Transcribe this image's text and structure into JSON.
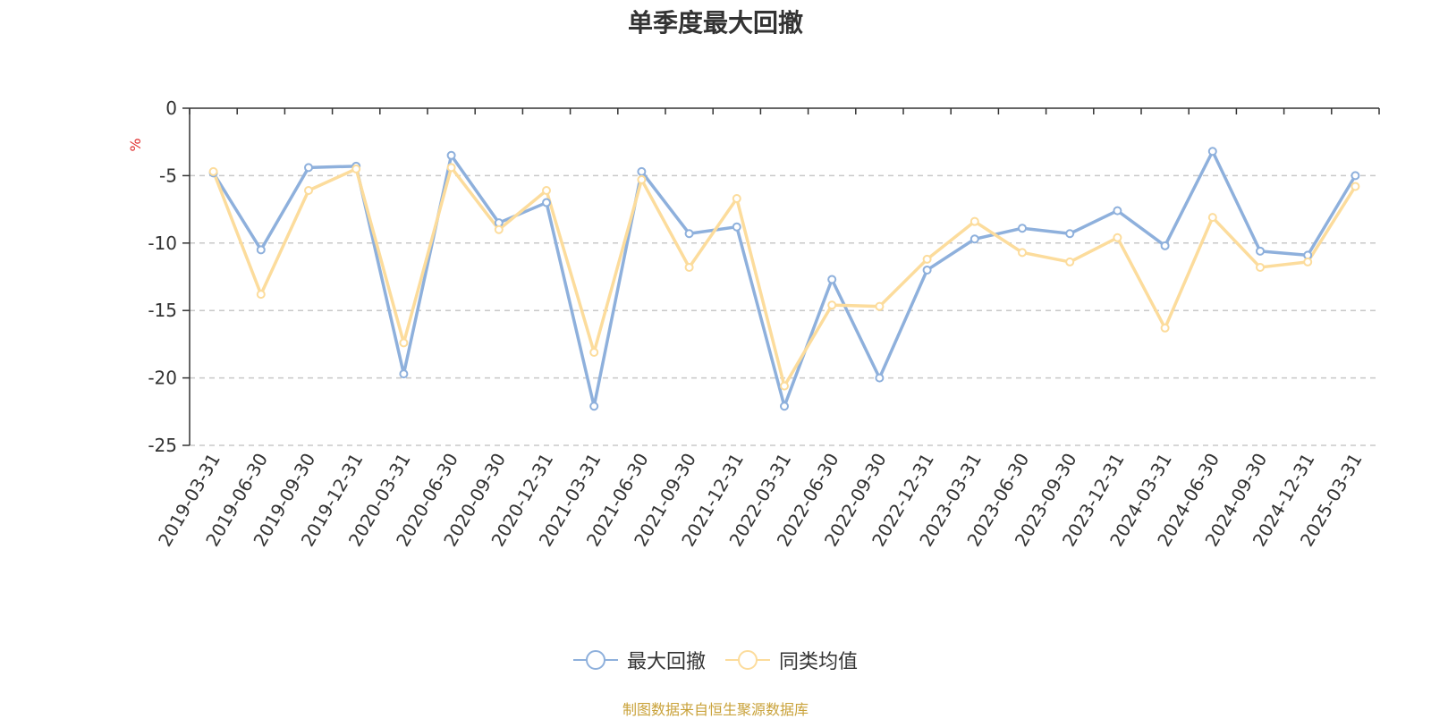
{
  "title": "单季度最大回撤",
  "source": "制图数据来自恒生聚源数据库",
  "colors": {
    "max_drawdown": "#8eb0dc",
    "category_avg": "#fcdc9c",
    "unit": "#e03030",
    "source": "#c9a23a"
  },
  "chart_data": {
    "type": "line",
    "title": "单季度最大回撤",
    "ylabel": "%",
    "xlabel": "",
    "ylim": [
      -25,
      0
    ],
    "yticks": [
      0,
      -5,
      -10,
      -15,
      -20,
      -25
    ],
    "grid": true,
    "legend_position": "bottom",
    "categories": [
      "2019-03-31",
      "2019-06-30",
      "2019-09-30",
      "2019-12-31",
      "2020-03-31",
      "2020-06-30",
      "2020-09-30",
      "2020-12-31",
      "2021-03-31",
      "2021-06-30",
      "2021-09-30",
      "2021-12-31",
      "2022-03-31",
      "2022-06-30",
      "2022-09-30",
      "2022-12-31",
      "2023-03-31",
      "2023-06-30",
      "2023-09-30",
      "2023-12-31",
      "2024-03-31",
      "2024-06-30",
      "2024-09-30",
      "2024-12-31",
      "2025-03-31"
    ],
    "series": [
      {
        "name": "最大回撤",
        "values": [
          -4.8,
          -10.5,
          -4.4,
          -4.3,
          -19.7,
          -3.5,
          -8.5,
          -7.0,
          -22.1,
          -4.7,
          -9.3,
          -8.8,
          -22.1,
          -12.7,
          -20.0,
          -12.0,
          -9.7,
          -8.9,
          -9.3,
          -7.6,
          -10.2,
          -3.2,
          -10.6,
          -10.9,
          -5.0
        ]
      },
      {
        "name": "同类均值",
        "values": [
          -4.7,
          -13.8,
          -6.1,
          -4.5,
          -17.4,
          -4.4,
          -9.0,
          -6.1,
          -18.1,
          -5.3,
          -11.8,
          -6.7,
          -20.6,
          -14.6,
          -14.7,
          -11.2,
          -8.4,
          -10.7,
          -11.4,
          -9.6,
          -16.3,
          -8.1,
          -11.8,
          -11.4,
          -5.8
        ]
      }
    ]
  }
}
